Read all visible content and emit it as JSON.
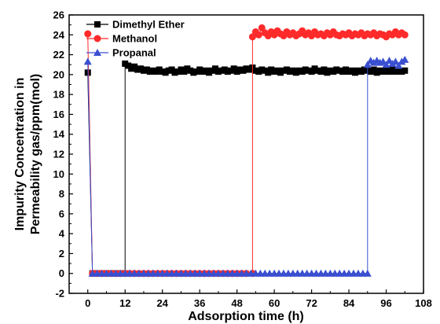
{
  "chart_data": {
    "type": "line",
    "title": "",
    "xlabel": "Adsorption time (h)",
    "ylabel_line1": "Impurity Concentration in",
    "ylabel_line2": "Permeability gas/ppm(mol)",
    "xlim": [
      -6,
      108
    ],
    "ylim": [
      -2,
      26
    ],
    "xticks": [
      0,
      12,
      24,
      36,
      48,
      60,
      72,
      84,
      96,
      108
    ],
    "yticks": [
      -2,
      0,
      2,
      4,
      6,
      8,
      10,
      12,
      14,
      16,
      18,
      20,
      22,
      24,
      26
    ],
    "grid": false,
    "legend_position": "top-left",
    "series": [
      {
        "name": "Dimethyl Ether",
        "color": "#000000",
        "marker": "square",
        "points": [
          [
            0,
            20.2
          ],
          [
            1.5,
            0
          ],
          [
            3,
            0
          ],
          [
            4.5,
            0
          ],
          [
            6,
            0
          ],
          [
            7.5,
            0
          ],
          [
            9,
            0
          ],
          [
            10.5,
            0
          ],
          [
            12,
            0
          ],
          [
            12,
            21.1
          ],
          [
            13,
            20.9
          ],
          [
            14,
            20.6
          ],
          [
            15,
            20.8
          ],
          [
            16,
            20.5
          ],
          [
            17,
            20.6
          ],
          [
            18,
            20.4
          ],
          [
            19,
            20.5
          ],
          [
            20,
            20.3
          ],
          [
            21,
            20.4
          ],
          [
            22,
            20.3
          ],
          [
            23,
            20.5
          ],
          [
            24,
            20.3
          ],
          [
            25,
            20.2
          ],
          [
            26,
            20.4
          ],
          [
            27,
            20.5
          ],
          [
            28,
            20.2
          ],
          [
            29,
            20.3
          ],
          [
            30,
            20.5
          ],
          [
            31,
            20.3
          ],
          [
            32,
            20.6
          ],
          [
            33,
            20.4
          ],
          [
            34,
            20.2
          ],
          [
            35,
            20.3
          ],
          [
            36,
            20.5
          ],
          [
            37,
            20.3
          ],
          [
            38,
            20.4
          ],
          [
            39,
            20.2
          ],
          [
            40,
            20.4
          ],
          [
            41,
            20.6
          ],
          [
            42,
            20.3
          ],
          [
            43,
            20.4
          ],
          [
            44,
            20.5
          ],
          [
            45,
            20.3
          ],
          [
            46,
            20.4
          ],
          [
            47,
            20.6
          ],
          [
            48,
            20.3
          ],
          [
            49,
            20.5
          ],
          [
            50,
            20.4
          ],
          [
            51,
            20.6
          ],
          [
            52,
            20.5
          ],
          [
            53,
            20.7
          ],
          [
            54,
            20.4
          ],
          [
            55,
            20.3
          ],
          [
            56,
            20.5
          ],
          [
            57,
            20.4
          ],
          [
            58,
            20.2
          ],
          [
            59,
            20.5
          ],
          [
            60,
            20.3
          ],
          [
            61,
            20.4
          ],
          [
            62,
            20.2
          ],
          [
            63,
            20.4
          ],
          [
            64,
            20.5
          ],
          [
            65,
            20.3
          ],
          [
            66,
            20.4
          ],
          [
            67,
            20.2
          ],
          [
            68,
            20.4
          ],
          [
            69,
            20.3
          ],
          [
            70,
            20.5
          ],
          [
            71,
            20.4
          ],
          [
            72,
            20.3
          ],
          [
            73,
            20.6
          ],
          [
            74,
            20.4
          ],
          [
            75,
            20.3
          ],
          [
            76,
            20.5
          ],
          [
            77,
            20.2
          ],
          [
            78,
            20.4
          ],
          [
            79,
            20.3
          ],
          [
            80,
            20.5
          ],
          [
            81,
            20.4
          ],
          [
            82,
            20.3
          ],
          [
            83,
            20.5
          ],
          [
            84,
            20.3
          ],
          [
            85,
            20.4
          ],
          [
            86,
            20.2
          ],
          [
            87,
            20.4
          ],
          [
            88,
            20.3
          ],
          [
            89,
            20.5
          ],
          [
            90,
            20.4
          ],
          [
            91,
            20.3
          ],
          [
            92,
            20.5
          ],
          [
            93,
            20.2
          ],
          [
            94,
            20.4
          ],
          [
            95,
            20.3
          ],
          [
            96,
            20.4
          ],
          [
            97,
            20.3
          ],
          [
            98,
            20.5
          ],
          [
            99,
            20.3
          ],
          [
            100,
            20.4
          ],
          [
            101,
            20.3
          ],
          [
            102,
            20.4
          ]
        ]
      },
      {
        "name": "Methanol",
        "color": "#ff2a2a",
        "marker": "circle",
        "points": [
          [
            0,
            24.1
          ],
          [
            1.5,
            0
          ],
          [
            3,
            0
          ],
          [
            4.5,
            0
          ],
          [
            6,
            0
          ],
          [
            7.5,
            0
          ],
          [
            9,
            0
          ],
          [
            10.5,
            0
          ],
          [
            12,
            0
          ],
          [
            13.5,
            0
          ],
          [
            15,
            0
          ],
          [
            16.5,
            0
          ],
          [
            18,
            0
          ],
          [
            19.5,
            0
          ],
          [
            21,
            0
          ],
          [
            22.5,
            0
          ],
          [
            24,
            0
          ],
          [
            25.5,
            0
          ],
          [
            27,
            0
          ],
          [
            28.5,
            0
          ],
          [
            30,
            0
          ],
          [
            31.5,
            0
          ],
          [
            33,
            0
          ],
          [
            34.5,
            0
          ],
          [
            36,
            0
          ],
          [
            37.5,
            0
          ],
          [
            39,
            0
          ],
          [
            40.5,
            0
          ],
          [
            42,
            0
          ],
          [
            43.5,
            0
          ],
          [
            45,
            0
          ],
          [
            46.5,
            0
          ],
          [
            48,
            0
          ],
          [
            49.5,
            0
          ],
          [
            51,
            0
          ],
          [
            53,
            0
          ],
          [
            53,
            23.8
          ],
          [
            54,
            24.3
          ],
          [
            55,
            24.0
          ],
          [
            56,
            24.7
          ],
          [
            57,
            24.2
          ],
          [
            58,
            23.9
          ],
          [
            59,
            24.3
          ],
          [
            60,
            24.0
          ],
          [
            61,
            24.4
          ],
          [
            62,
            24.1
          ],
          [
            63,
            23.9
          ],
          [
            64,
            24.3
          ],
          [
            65,
            24.0
          ],
          [
            66,
            24.2
          ],
          [
            67,
            23.9
          ],
          [
            68,
            24.1
          ],
          [
            69,
            24.4
          ],
          [
            70,
            24.0
          ],
          [
            71,
            24.2
          ],
          [
            72,
            23.9
          ],
          [
            73,
            24.3
          ],
          [
            74,
            24.0
          ],
          [
            75,
            24.1
          ],
          [
            76,
            23.9
          ],
          [
            77,
            24.2
          ],
          [
            78,
            24.0
          ],
          [
            79,
            24.3
          ],
          [
            80,
            24.0
          ],
          [
            81,
            23.9
          ],
          [
            82,
            24.1
          ],
          [
            83,
            24.0
          ],
          [
            84,
            24.2
          ],
          [
            85,
            23.9
          ],
          [
            86,
            24.1
          ],
          [
            87,
            24.0
          ],
          [
            88,
            24.2
          ],
          [
            89,
            23.9
          ],
          [
            90,
            24.1
          ],
          [
            91,
            24.0
          ],
          [
            92,
            24.2
          ],
          [
            93,
            23.9
          ],
          [
            94,
            24.1
          ],
          [
            95,
            24.0
          ],
          [
            96,
            23.8
          ],
          [
            97,
            24.1
          ],
          [
            98,
            24.0
          ],
          [
            99,
            24.3
          ],
          [
            100,
            24.0
          ],
          [
            101,
            24.2
          ],
          [
            102,
            24.0
          ]
        ]
      },
      {
        "name": "Propanal",
        "color": "#3a4fd0",
        "marker": "triangle",
        "points": [
          [
            0,
            21.3
          ],
          [
            1.5,
            0
          ],
          [
            3,
            0
          ],
          [
            4.5,
            0
          ],
          [
            6,
            0
          ],
          [
            7.5,
            0
          ],
          [
            9,
            0
          ],
          [
            10.5,
            0
          ],
          [
            12,
            0
          ],
          [
            13.5,
            0
          ],
          [
            15,
            0
          ],
          [
            16.5,
            0
          ],
          [
            18,
            0
          ],
          [
            19.5,
            0
          ],
          [
            21,
            0
          ],
          [
            22.5,
            0
          ],
          [
            24,
            0
          ],
          [
            25.5,
            0
          ],
          [
            27,
            0
          ],
          [
            28.5,
            0
          ],
          [
            30,
            0
          ],
          [
            31.5,
            0
          ],
          [
            33,
            0
          ],
          [
            34.5,
            0
          ],
          [
            36,
            0
          ],
          [
            37.5,
            0
          ],
          [
            39,
            0
          ],
          [
            40.5,
            0
          ],
          [
            42,
            0
          ],
          [
            43.5,
            0
          ],
          [
            45,
            0
          ],
          [
            46.5,
            0
          ],
          [
            48,
            0
          ],
          [
            49.5,
            0
          ],
          [
            51,
            0
          ],
          [
            52.5,
            0
          ],
          [
            54,
            0
          ],
          [
            55.5,
            0
          ],
          [
            57,
            0
          ],
          [
            58.5,
            0
          ],
          [
            60,
            0
          ],
          [
            61.5,
            0
          ],
          [
            63,
            0
          ],
          [
            64.5,
            0
          ],
          [
            66,
            0
          ],
          [
            67.5,
            0
          ],
          [
            69,
            0
          ],
          [
            70.5,
            0
          ],
          [
            72,
            0
          ],
          [
            73.5,
            0
          ],
          [
            75,
            0
          ],
          [
            76.5,
            0
          ],
          [
            78,
            0
          ],
          [
            79.5,
            0
          ],
          [
            81,
            0
          ],
          [
            82.5,
            0
          ],
          [
            84,
            0
          ],
          [
            85.5,
            0
          ],
          [
            87,
            0
          ],
          [
            88.5,
            0
          ],
          [
            90,
            0
          ],
          [
            90,
            21.0
          ],
          [
            91,
            21.4
          ],
          [
            92,
            21.2
          ],
          [
            93,
            21.4
          ],
          [
            94,
            21.2
          ],
          [
            95,
            21.3
          ],
          [
            96,
            21.0
          ],
          [
            97,
            21.4
          ],
          [
            98,
            21.1
          ],
          [
            99,
            21.3
          ],
          [
            100,
            20.9
          ],
          [
            101,
            21.3
          ],
          [
            102,
            21.5
          ]
        ]
      }
    ]
  }
}
